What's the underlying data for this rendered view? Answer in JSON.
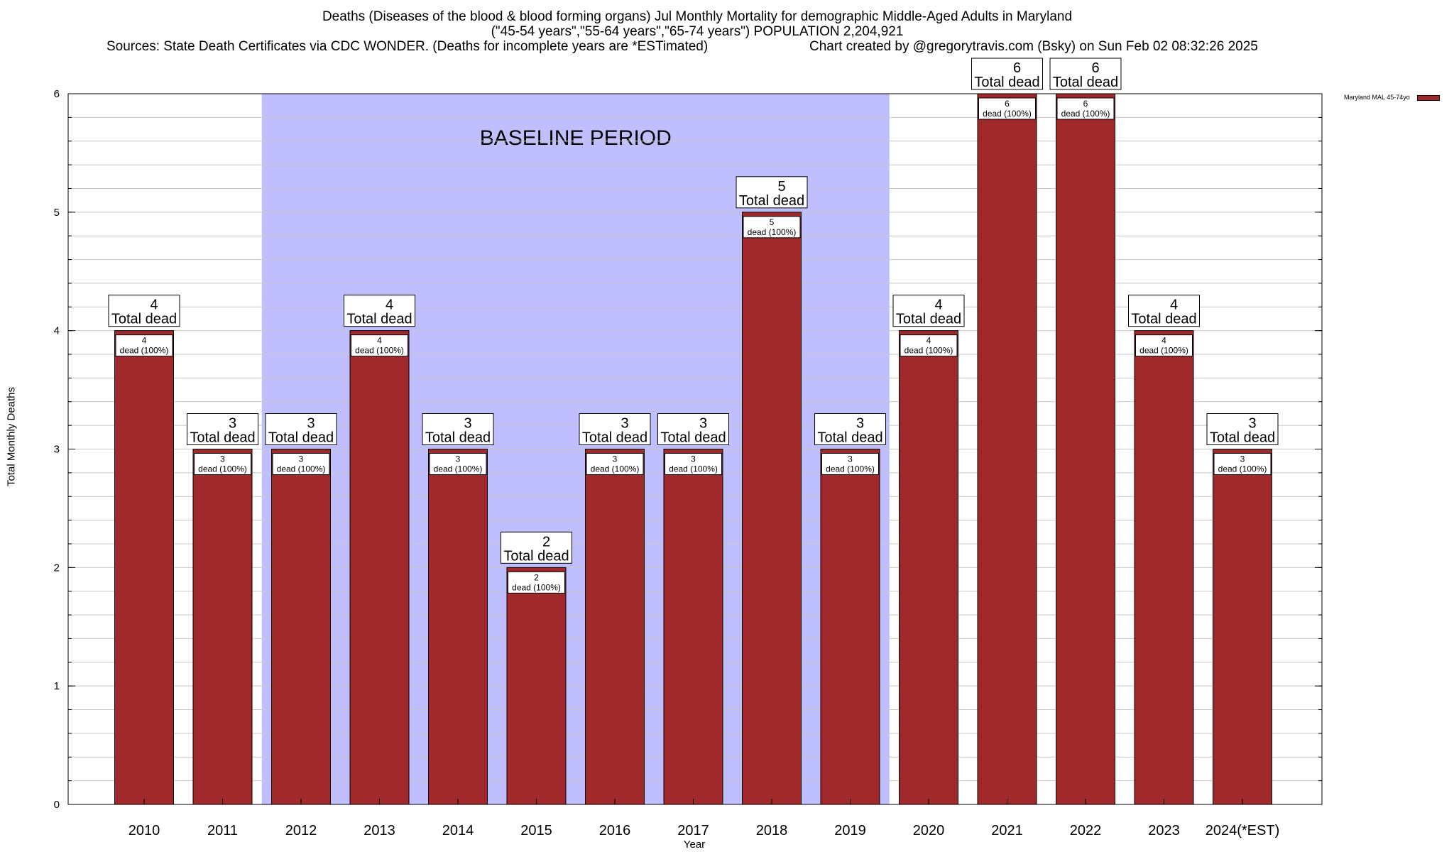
{
  "title": {
    "line1": "Deaths (Diseases of the blood & blood forming organs) Jul Monthly Mortality for demographic Middle-Aged Adults in Maryland",
    "line2": "(\"45-54 years\",\"55-64 years\",\"65-74 years\") POPULATION 2,204,921",
    "line3_left": "Sources: State Death Certificates via CDC WONDER. (Deaths for incomplete years are *ESTimated)",
    "line3_right": "Chart created by @gregorytravis.com (Bsky) on Sun Feb 02 08:32:26 2025"
  },
  "colors": {
    "bar": "#A0292B",
    "baseline_band": "#BFBFFF",
    "grid": "#C8C8C8"
  },
  "chart_data": {
    "type": "bar",
    "xlabel": "Year",
    "ylabel": "Total Monthly Deaths",
    "ylim": [
      0,
      6
    ],
    "yticks": [
      0,
      1,
      2,
      3,
      4,
      5,
      6
    ],
    "grid": true,
    "legend_placement": "top-right",
    "baseline_label": "BASELINE PERIOD",
    "baseline_range": [
      "2012",
      "2019"
    ],
    "categories": [
      "2010",
      "2011",
      "2012",
      "2013",
      "2014",
      "2015",
      "2016",
      "2017",
      "2018",
      "2019",
      "2020",
      "2021",
      "2022",
      "2023",
      "2024(*EST)"
    ],
    "series": [
      {
        "name": "Maryland MAL 45-74yo",
        "values": [
          4,
          3,
          3,
          4,
          3,
          2,
          3,
          3,
          5,
          3,
          4,
          6,
          6,
          4,
          3
        ]
      }
    ],
    "top_label_suffix": "Total dead",
    "inner_label_suffix": "dead (100%)"
  }
}
